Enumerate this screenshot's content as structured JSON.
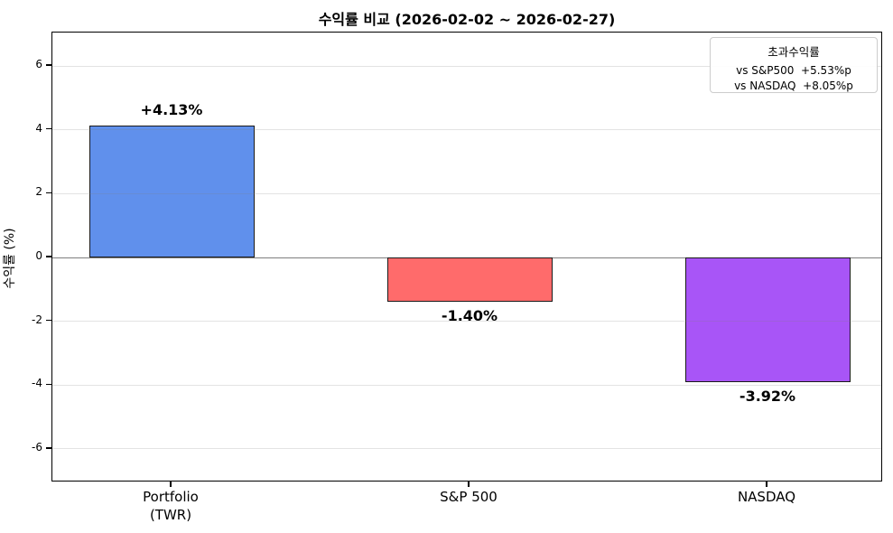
{
  "chart_data": {
    "type": "bar",
    "title": "수익률 비교 (2026-02-02 ~ 2026-02-27)",
    "ylabel": "수익률 (%)",
    "xlabel": "",
    "categories": [
      "Portfolio\n(TWR)",
      "S&P 500",
      "NASDAQ"
    ],
    "values": [
      4.13,
      -1.4,
      -3.92
    ],
    "bar_value_labels": [
      "+4.13%",
      "-1.40%",
      "-3.92%"
    ],
    "bar_colors": [
      "#6090EC",
      "#FF6B6B",
      "#A855F7"
    ],
    "bar_edge_color": "#1a1a1a",
    "ylim": [
      -7.05,
      7.05
    ],
    "yticks": [
      -6,
      -4,
      -2,
      0,
      2,
      4,
      6
    ],
    "grid": true,
    "gridline_color": "#dcdcdc",
    "zero_line_color": "#7f7f7f",
    "legend": {
      "position": "top-right",
      "title": "초과수익률",
      "entries": [
        "vs S&P500  +5.53%p",
        "vs NASDAQ  +8.05%p"
      ]
    }
  }
}
